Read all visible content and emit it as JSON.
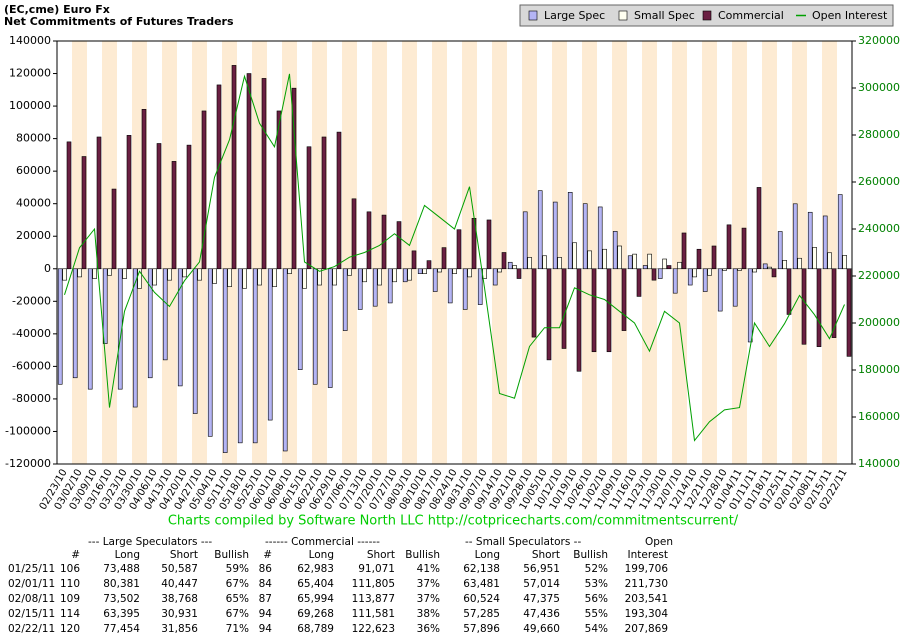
{
  "chart_data": {
    "type": "bar",
    "title": "(EC,cme) Euro Fx",
    "subtitle": "Net Commitments of Futures Traders",
    "categories": [
      "02/23/10",
      "03/02/10",
      "03/09/10",
      "03/16/10",
      "03/23/10",
      "03/30/10",
      "04/06/10",
      "04/13/10",
      "04/20/10",
      "04/27/10",
      "05/04/10",
      "05/11/10",
      "05/18/10",
      "05/25/10",
      "06/01/10",
      "06/08/10",
      "06/15/10",
      "06/22/10",
      "06/29/10",
      "07/06/10",
      "07/13/10",
      "07/20/10",
      "07/27/10",
      "08/03/10",
      "08/10/10",
      "08/17/10",
      "08/24/10",
      "08/31/10",
      "09/07/10",
      "09/14/10",
      "09/21/10",
      "09/28/10",
      "10/05/10",
      "10/12/10",
      "10/19/10",
      "10/26/10",
      "11/02/10",
      "11/09/10",
      "11/16/10",
      "11/23/10",
      "11/30/10",
      "12/07/10",
      "12/14/10",
      "12/21/10",
      "12/28/10",
      "01/04/11",
      "01/11/11",
      "01/18/11",
      "01/25/11",
      "02/01/11",
      "02/08/11",
      "02/15/11",
      "02/22/11"
    ],
    "series": [
      {
        "name": "Large Spec",
        "color": "#b4b4f4",
        "values": [
          -71000,
          -67000,
          -74000,
          -46000,
          -74000,
          -85000,
          -67000,
          -56000,
          -72000,
          -89000,
          -103000,
          -113000,
          -107000,
          -107000,
          -93000,
          -112000,
          -62000,
          -71000,
          -73000,
          -38000,
          -25000,
          -23000,
          -21000,
          -8000,
          -3000,
          -14000,
          -21000,
          -25000,
          -22000,
          -10000,
          4000,
          35000,
          48000,
          41000,
          47000,
          40000,
          38000,
          23000,
          8000,
          2000,
          -6000,
          -15000,
          -10000,
          -14000,
          -26000,
          -23000,
          -45000,
          3000,
          22901,
          39934,
          34734,
          32464,
          45598
        ]
      },
      {
        "name": "Small Spec",
        "color": "#fffff0",
        "values": [
          -7000,
          -5000,
          -6000,
          -4000,
          -6000,
          -12000,
          -10000,
          -7000,
          -5000,
          -7000,
          -9000,
          -11000,
          -12000,
          -10000,
          -11000,
          -3000,
          -12000,
          -10000,
          -10000,
          -4000,
          -8000,
          -10000,
          -8000,
          -7000,
          -3000,
          -2000,
          -3000,
          -5000,
          -6000,
          -2000,
          2000,
          7000,
          8000,
          7000,
          16000,
          11000,
          12000,
          14000,
          9000,
          9000,
          6000,
          4000,
          -5000,
          -4000,
          -1000,
          -1000,
          -2000,
          1000,
          5187,
          6467,
          13149,
          9849,
          8236
        ]
      },
      {
        "name": "Commercial",
        "color": "#6a1f42",
        "values": [
          78000,
          69000,
          81000,
          49000,
          82000,
          98000,
          77000,
          66000,
          76000,
          97000,
          113000,
          125000,
          120000,
          117000,
          97000,
          111000,
          75000,
          81000,
          84000,
          43000,
          35000,
          33000,
          29000,
          11000,
          5000,
          13000,
          24000,
          31000,
          30000,
          10000,
          -6000,
          -42000,
          -56000,
          -49000,
          -63000,
          -51000,
          -51000,
          -38000,
          -17000,
          -7000,
          2000,
          22000,
          12000,
          14000,
          27000,
          25000,
          50000,
          -5000,
          -28088,
          -46401,
          -47883,
          -42313,
          -53834
        ]
      },
      {
        "name": "Open Interest",
        "color": "#00a000",
        "type": "line",
        "axis": "y2",
        "values": [
          212000,
          232000,
          240000,
          164000,
          205000,
          222000,
          213000,
          207000,
          218000,
          226000,
          262000,
          278000,
          305000,
          285000,
          275000,
          306000,
          226000,
          222000,
          224000,
          228000,
          230000,
          233000,
          238000,
          233000,
          250000,
          245000,
          240000,
          258000,
          215000,
          170000,
          168000,
          190000,
          198000,
          198000,
          215000,
          212000,
          210000,
          205000,
          200000,
          188000,
          205000,
          200000,
          150000,
          158000,
          163000,
          164000,
          200000,
          190000,
          199706,
          211730,
          203541,
          193304,
          207869
        ]
      }
    ],
    "ylim": [
      -120000,
      140000
    ],
    "yticks": [
      -120000,
      -100000,
      -80000,
      -60000,
      -40000,
      -20000,
      0,
      20000,
      40000,
      60000,
      80000,
      100000,
      120000,
      140000
    ],
    "y2lim": [
      140000,
      320000
    ],
    "y2ticks": [
      140000,
      160000,
      180000,
      200000,
      220000,
      240000,
      260000,
      280000,
      300000,
      320000
    ],
    "grid": false,
    "legend": "top-right"
  },
  "credit": "Charts compiled by Software North LLC  http://cotpricecharts.com/commitmentscurrent/",
  "table": {
    "group_headers": [
      "--- Large Speculators ---",
      "------ Commercial ------",
      "-- Small Speculators --",
      "Open"
    ],
    "headers": [
      "#",
      "Long",
      "Short",
      "Bullish",
      "#",
      "Long",
      "Short",
      "Bullish",
      "Long",
      "Short",
      "Bullish",
      "Interest"
    ],
    "rows": [
      [
        "01/25/11",
        "106",
        "73,488",
        "50,587",
        "59%",
        "86",
        "62,983",
        "91,071",
        "41%",
        "62,138",
        "56,951",
        "52%",
        "199,706"
      ],
      [
        "02/01/11",
        "110",
        "80,381",
        "40,447",
        "67%",
        "84",
        "65,404",
        "111,805",
        "37%",
        "63,481",
        "57,014",
        "53%",
        "211,730"
      ],
      [
        "02/08/11",
        "109",
        "73,502",
        "38,768",
        "65%",
        "87",
        "65,994",
        "113,877",
        "37%",
        "60,524",
        "47,375",
        "56%",
        "203,541"
      ],
      [
        "02/15/11",
        "114",
        "63,395",
        "30,931",
        "67%",
        "94",
        "69,268",
        "111,581",
        "38%",
        "57,285",
        "47,436",
        "55%",
        "193,304"
      ],
      [
        "02/22/11",
        "120",
        "77,454",
        "31,856",
        "71%",
        "94",
        "68,789",
        "122,623",
        "36%",
        "57,896",
        "49,660",
        "54%",
        "207,869"
      ]
    ]
  }
}
